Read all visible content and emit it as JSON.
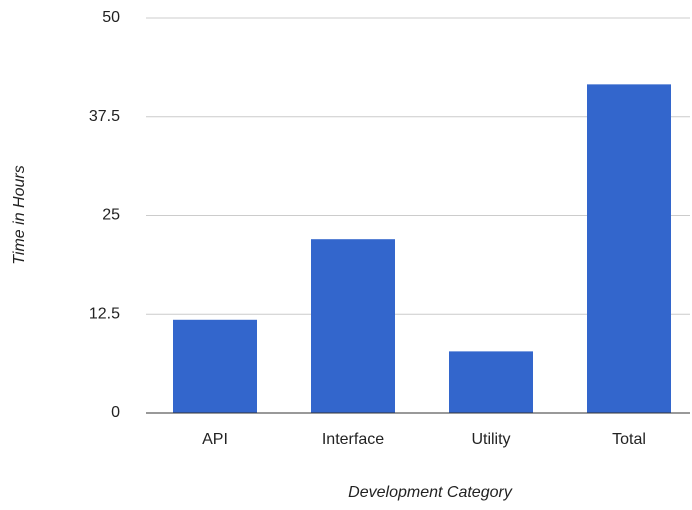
{
  "chart_data": {
    "type": "bar",
    "x_label": "Development Category",
    "y_label": "Time in Hours",
    "categories": [
      "API",
      "Interface",
      "Utility",
      "Total"
    ],
    "values": [
      11.8,
      22,
      7.8,
      41.6
    ],
    "color": "#3366cc",
    "ylim": [
      0,
      50
    ],
    "yticks": [
      0,
      12.5,
      25,
      37.5,
      50
    ],
    "grid": true
  }
}
